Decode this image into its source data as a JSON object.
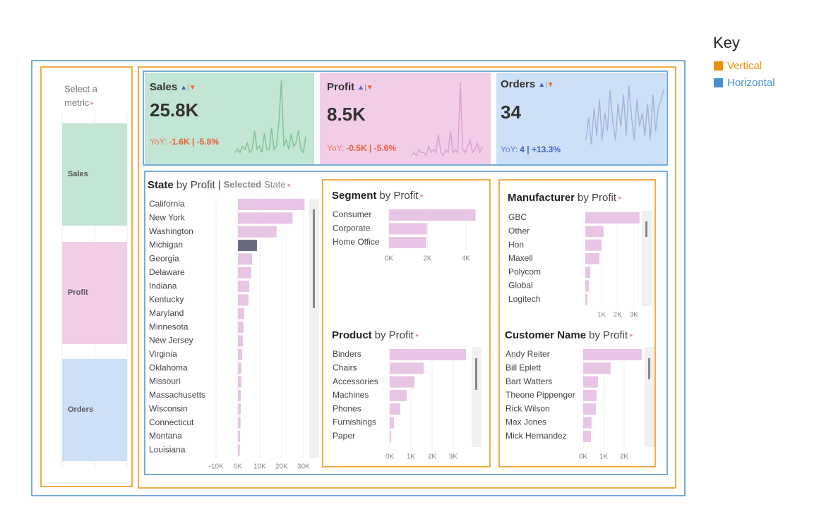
{
  "menu_glyph": "▸",
  "up_glyph": "▲",
  "sep_glyph": "|",
  "down_glyph": "▼",
  "key": {
    "title": "Key",
    "items": [
      {
        "label": "Vertical",
        "color": "#f0900a"
      },
      {
        "label": "Horizontal",
        "color": "#4a8fd6"
      }
    ]
  },
  "metric_selector": {
    "prompt_line1": "Select a",
    "prompt_line2": "metric",
    "options": [
      {
        "label": "Sales",
        "color": "#c3e5d3"
      },
      {
        "label": "Profit",
        "color": "#f2cde8"
      },
      {
        "label": "Orders",
        "color": "#cde0f7"
      }
    ]
  },
  "kpis": [
    {
      "name": "Sales",
      "value": "25.8K",
      "yoy_label": "YoY:",
      "yoy": "-1.6K | -5.8%",
      "background": "#c3e5d3",
      "yoy_color": "#e8623a",
      "sparkline": {
        "type": "line",
        "color": "#7fc495",
        "ylim": [
          0,
          26
        ],
        "values": [
          2,
          3,
          2,
          4,
          3,
          5,
          2,
          3,
          9,
          3,
          4,
          2,
          8,
          3,
          3,
          10,
          3,
          4,
          12,
          25,
          4,
          6,
          3,
          8,
          4,
          5,
          9,
          3,
          2,
          7
        ]
      }
    },
    {
      "name": "Profit",
      "value": "8.5K",
      "yoy_label": "YoY:",
      "yoy": "-0.5K | -5.6%",
      "background": "#f2cde8",
      "yoy_color": "#e8623a",
      "sparkline": {
        "type": "line",
        "color": "#d8a3cf",
        "ylim": [
          0,
          26
        ],
        "values": [
          1,
          2,
          1,
          3,
          2,
          2,
          1,
          4,
          2,
          3,
          2,
          8,
          2,
          1,
          3,
          2,
          9,
          2,
          3,
          2,
          25,
          3,
          2,
          4,
          6,
          2,
          3,
          5,
          2,
          4
        ]
      }
    },
    {
      "name": "Orders",
      "value": "34",
      "yoy_label": "YoY:",
      "yoy": "4 | +13.3%",
      "background": "#cde0f7",
      "yoy_color": "#3c5fc4",
      "sparkline": {
        "type": "line",
        "color": "#a4b5dc",
        "ylim": [
          0,
          16
        ],
        "values": [
          3,
          8,
          2,
          10,
          4,
          12,
          3,
          9,
          5,
          14,
          7,
          3,
          11,
          6,
          13,
          4,
          15,
          8,
          3,
          12,
          6,
          9,
          4,
          11,
          3,
          13,
          5,
          10,
          12,
          14
        ]
      }
    }
  ],
  "chart_data": [
    {
      "type": "bar",
      "title_field": "State",
      "title_measure": "by Profit",
      "title_sep": "|",
      "title_selected": "Selected",
      "title_selected_field": "State",
      "categories": [
        "California",
        "New York",
        "Washington",
        "Michigan",
        "Georgia",
        "Delaware",
        "Indiana",
        "Kentucky",
        "Maryland",
        "Minnesota",
        "New Jersey",
        "Virginia",
        "Oklahoma",
        "Missouri",
        "Massachusetts",
        "Wisconsin",
        "Connecticut",
        "Montana",
        "Louisiana"
      ],
      "values": [
        30500,
        25000,
        17700,
        8700,
        6500,
        6100,
        5200,
        4800,
        2900,
        2600,
        2300,
        1900,
        1600,
        1600,
        1300,
        1300,
        1200,
        1000,
        900
      ],
      "color": "#e8c5e4",
      "selected": "Michigan",
      "selected_color": "#6b6b80",
      "xlim": [
        -11000,
        32000
      ],
      "xticks": [
        {
          "value": -10000,
          "label": "-10K"
        },
        {
          "value": 0,
          "label": "0K"
        },
        {
          "value": 10000,
          "label": "10K"
        },
        {
          "value": 20000,
          "label": "20K"
        },
        {
          "value": 30000,
          "label": "30K"
        }
      ]
    },
    {
      "type": "bar",
      "title_field": "Segment",
      "title_measure": "by Profit",
      "categories": [
        "Consumer",
        "Corporate",
        "Home Office"
      ],
      "values": [
        4500,
        1960,
        1930
      ],
      "color": "#e8c5e4",
      "xlim": [
        0,
        4700
      ],
      "xticks": [
        {
          "value": 0,
          "label": "0K"
        },
        {
          "value": 2000,
          "label": "2K"
        },
        {
          "value": 4000,
          "label": "4K"
        }
      ]
    },
    {
      "type": "bar",
      "title_field": "Product",
      "title_measure": "by Profit",
      "categories": [
        "Binders",
        "Chairs",
        "Accessories",
        "Machines",
        "Phones",
        "Furnishings",
        "Paper"
      ],
      "values": [
        3600,
        1600,
        1170,
        800,
        500,
        200,
        70
      ],
      "color": "#e8c5e4",
      "xlim": [
        0,
        3700
      ],
      "xticks": [
        {
          "value": 0,
          "label": "0K"
        },
        {
          "value": 1000,
          "label": "1K"
        },
        {
          "value": 2000,
          "label": "2K"
        },
        {
          "value": 3000,
          "label": "3K"
        }
      ]
    },
    {
      "type": "bar",
      "title_field": "Manufacturer",
      "title_measure": "by Profit",
      "categories": [
        "GBC",
        "Other",
        "Hon",
        "Maxell",
        "Polycom",
        "Global",
        "Logitech"
      ],
      "values": [
        3350,
        1130,
        1000,
        870,
        300,
        220,
        130
      ],
      "color": "#e8c5e4",
      "xlim": [
        0,
        3450
      ],
      "xticks": [
        {
          "value": 1000,
          "label": "1K"
        },
        {
          "value": 2000,
          "label": "2K"
        },
        {
          "value": 3000,
          "label": "3K"
        }
      ]
    },
    {
      "type": "bar",
      "title_field": "Customer Name",
      "title_measure": "by Profit",
      "categories": [
        "Andy Reiter",
        "Bill Eplett",
        "Bart Watters",
        "Theone Pippenger",
        "Rick Wilson",
        "Max Jones",
        "Mick Hernandez"
      ],
      "values": [
        2860,
        1340,
        720,
        660,
        620,
        410,
        380
      ],
      "color": "#e8c5e4",
      "xlim": [
        0,
        3000
      ],
      "xticks": [
        {
          "value": 0,
          "label": "0K"
        },
        {
          "value": 1000,
          "label": "1K"
        },
        {
          "value": 2000,
          "label": "2K"
        }
      ]
    }
  ]
}
